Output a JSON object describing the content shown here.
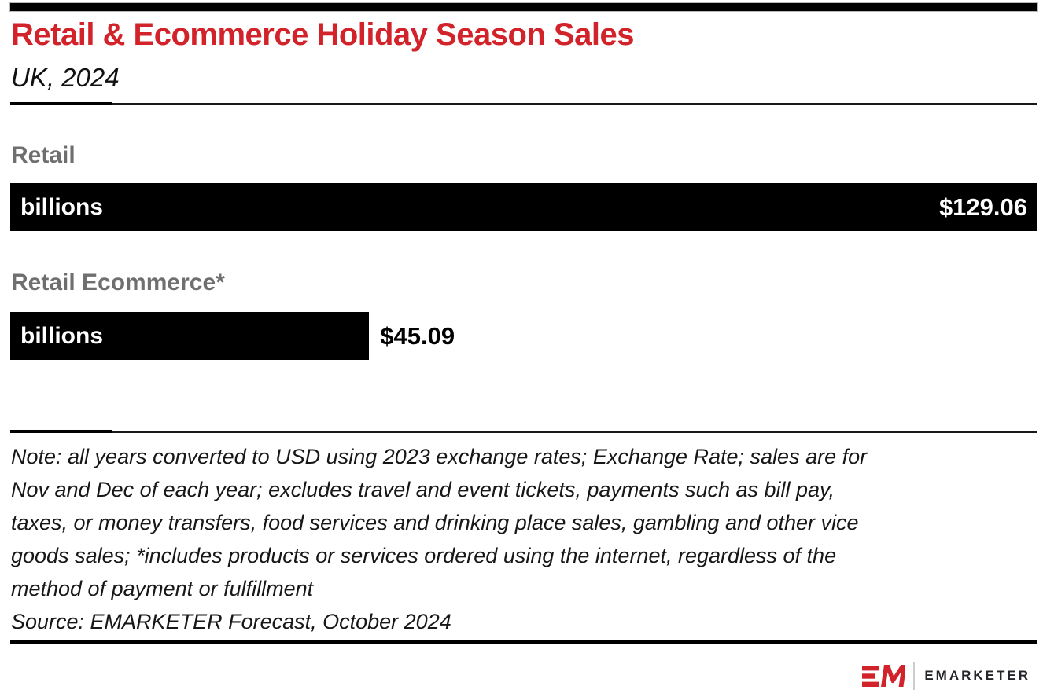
{
  "header": {
    "title": "Retail & Ecommerce Holiday Season Sales",
    "subtitle": "UK, 2024"
  },
  "chart_data": {
    "type": "bar",
    "orientation": "horizontal",
    "title": "Retail & Ecommerce Holiday Season Sales",
    "subtitle": "UK, 2024",
    "categories": [
      "Retail",
      "Retail Ecommerce*"
    ],
    "values": [
      129.06,
      45.09
    ],
    "value_labels": [
      "$129.06",
      "$45.09"
    ],
    "unit_label": "billions",
    "currency": "USD",
    "xlim": [
      0,
      129.06
    ],
    "grid": false,
    "legend": false,
    "bar_color": "#000000"
  },
  "sections": [
    {
      "label": "Retail",
      "unit": "billions",
      "value": "$129.06"
    },
    {
      "label": "Retail Ecommerce*",
      "unit": "billions",
      "value": "$45.09"
    }
  ],
  "note": {
    "lines": [
      "Note: all years converted to USD using 2023 exchange rates; Exchange Rate; sales are for",
      "Nov and Dec of each year; excludes travel and event tickets, payments such as bill pay,",
      "taxes, or money transfers, food services and drinking place sales, gambling and other vice",
      "goods sales; *includes products or services ordered using the internet, regardless of the",
      "method of payment or fulfillment"
    ]
  },
  "source": "Source: EMARKETER Forecast, October 2024",
  "footer": {
    "brand": "EMARKETER",
    "logo_icon": "emarketer-em-logo"
  },
  "colors": {
    "accent_red": "#d2232a",
    "bar_black": "#000000",
    "label_gray": "#6f6f6f",
    "divider_dark": "#1a1a1a"
  }
}
